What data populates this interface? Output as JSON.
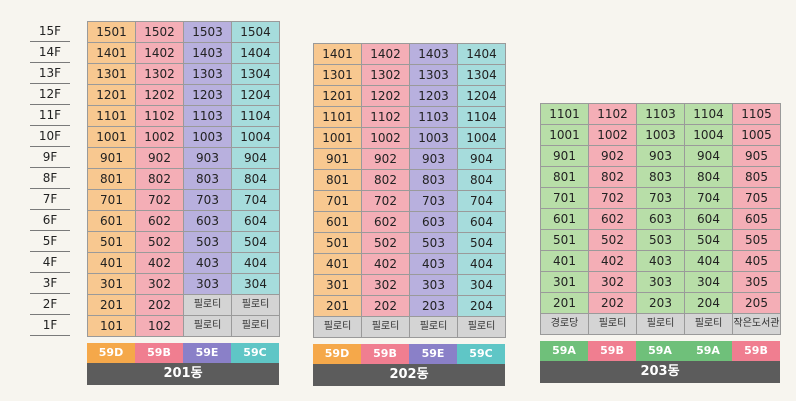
{
  "colors": {
    "59D": "#f8c890",
    "59B": "#f4aeb6",
    "59E": "#b8b0de",
    "59C": "#a6dcdc",
    "59A": "#b8dea8",
    "59D_tag": "#f5a84a",
    "59B_tag": "#f07e90",
    "59E_tag": "#8a80c8",
    "59C_tag": "#5fc6c6",
    "59A_tag": "#6fc07a"
  },
  "floors": [
    "15F",
    "14F",
    "13F",
    "12F",
    "11F",
    "10F",
    "9F",
    "8F",
    "7F",
    "6F",
    "5F",
    "4F",
    "3F",
    "2F",
    "1F"
  ],
  "buildings": [
    {
      "name": "201동",
      "col_types": [
        "59D",
        "59B",
        "59E",
        "59C"
      ],
      "rows": [
        [
          "1501",
          "1502",
          "1503",
          "1504"
        ],
        [
          "1401",
          "1402",
          "1403",
          "1404"
        ],
        [
          "1301",
          "1302",
          "1303",
          "1304"
        ],
        [
          "1201",
          "1202",
          "1203",
          "1204"
        ],
        [
          "1101",
          "1102",
          "1103",
          "1104"
        ],
        [
          "1001",
          "1002",
          "1003",
          "1004"
        ],
        [
          "901",
          "902",
          "903",
          "904"
        ],
        [
          "801",
          "802",
          "803",
          "804"
        ],
        [
          "701",
          "702",
          "703",
          "704"
        ],
        [
          "601",
          "602",
          "603",
          "604"
        ],
        [
          "501",
          "502",
          "503",
          "504"
        ],
        [
          "401",
          "402",
          "403",
          "404"
        ],
        [
          "301",
          "302",
          "303",
          "304"
        ],
        [
          "201",
          "202",
          "필로티",
          "필로티"
        ],
        [
          "101",
          "102",
          "필로티",
          "필로티"
        ]
      ]
    },
    {
      "name": "202동",
      "col_types": [
        "59D",
        "59B",
        "59E",
        "59C"
      ],
      "rows": [
        [
          "1401",
          "1402",
          "1403",
          "1404"
        ],
        [
          "1301",
          "1302",
          "1303",
          "1304"
        ],
        [
          "1201",
          "1202",
          "1203",
          "1204"
        ],
        [
          "1101",
          "1102",
          "1103",
          "1104"
        ],
        [
          "1001",
          "1002",
          "1003",
          "1004"
        ],
        [
          "901",
          "902",
          "903",
          "904"
        ],
        [
          "801",
          "802",
          "803",
          "804"
        ],
        [
          "701",
          "702",
          "703",
          "704"
        ],
        [
          "601",
          "602",
          "603",
          "604"
        ],
        [
          "501",
          "502",
          "503",
          "504"
        ],
        [
          "401",
          "402",
          "403",
          "404"
        ],
        [
          "301",
          "302",
          "303",
          "304"
        ],
        [
          "201",
          "202",
          "203",
          "204"
        ],
        [
          "필로티",
          "필로티",
          "필로티",
          "필로티"
        ]
      ]
    },
    {
      "name": "203동",
      "col_types": [
        "59A",
        "59B",
        "59A",
        "59A",
        "59B"
      ],
      "rows": [
        [
          "1101",
          "1102",
          "1103",
          "1104",
          "1105"
        ],
        [
          "1001",
          "1002",
          "1003",
          "1004",
          "1005"
        ],
        [
          "901",
          "902",
          "903",
          "904",
          "905"
        ],
        [
          "801",
          "802",
          "803",
          "804",
          "805"
        ],
        [
          "701",
          "702",
          "703",
          "704",
          "705"
        ],
        [
          "601",
          "602",
          "603",
          "604",
          "605"
        ],
        [
          "501",
          "502",
          "503",
          "504",
          "505"
        ],
        [
          "401",
          "402",
          "403",
          "404",
          "405"
        ],
        [
          "301",
          "302",
          "303",
          "304",
          "305"
        ],
        [
          "201",
          "202",
          "203",
          "204",
          "205"
        ],
        [
          "경로당",
          "필로티",
          "필로티",
          "필로티",
          "작은도서관"
        ]
      ]
    }
  ]
}
